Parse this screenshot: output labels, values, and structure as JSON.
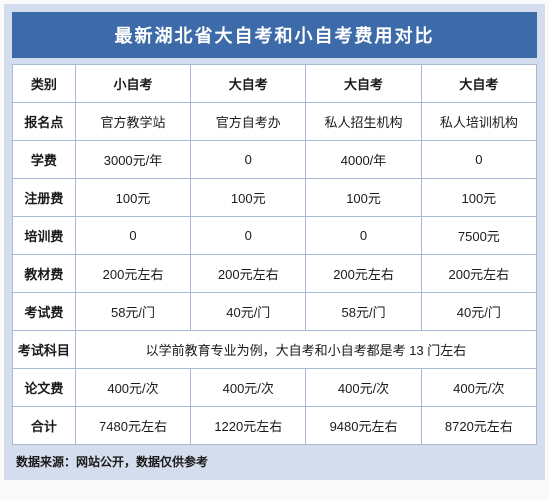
{
  "title": "最新湖北省大自考和小自考费用对比",
  "columns": [
    "类别",
    "小自考",
    "大自考",
    "大自考",
    "大自考"
  ],
  "rows": {
    "bmd": {
      "label": "报名点",
      "c1": "官方教学站",
      "c2": "官方自考办",
      "c3": "私人招生机构",
      "c4": "私人培训机构"
    },
    "xf": {
      "label": "学费",
      "c1": "3000元/年",
      "c2": "0",
      "c3": "4000/年",
      "c4": "0"
    },
    "zcf": {
      "label": "注册费",
      "c1": "100元",
      "c2": "100元",
      "c3": "100元",
      "c4": "100元"
    },
    "pxf": {
      "label": "培训费",
      "c1": "0",
      "c2": "0",
      "c3": "0",
      "c4": "7500元"
    },
    "jcf": {
      "label": "教材费",
      "c1": "200元左右",
      "c2": "200元左右",
      "c3": "200元左右",
      "c4": "200元左右"
    },
    "ksf": {
      "label": "考试费",
      "c1": "58元/门",
      "c2": "40元/门",
      "c3": "58元/门",
      "c4": "40元/门"
    },
    "kskm": {
      "label": "考试科目",
      "merged": "以学前教育专业为例，大自考和小自考都是考 13 门左右"
    },
    "lwf": {
      "label": "论文费",
      "c1": "400元/次",
      "c2": "400元/次",
      "c3": "400元/次",
      "c4": "400元/次"
    },
    "hj": {
      "label": "合计",
      "c1": "7480元左右",
      "c2": "1220元左右",
      "c3": "9480元左右",
      "c4": "8720元左右"
    }
  },
  "footer": "数据来源：网站公开，数据仅供参考",
  "colors": {
    "header_bg": "#3d6aa8",
    "panel_bg": "#d4dded",
    "border": "#a9b8d4",
    "text": "#1a1a1a"
  }
}
